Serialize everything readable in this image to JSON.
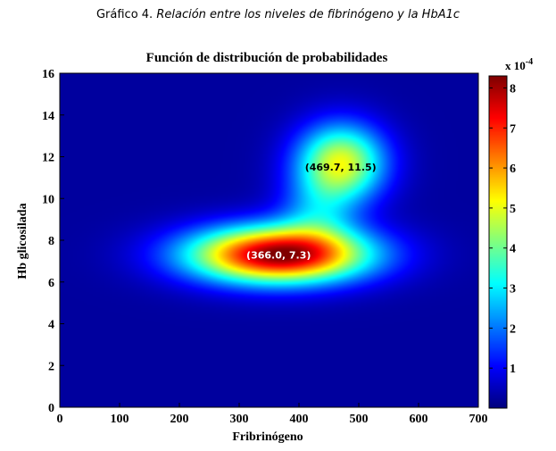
{
  "caption": {
    "label": "Gráfico 4.",
    "text": "Relación entre los niveles de fibrinógeno y la HbA1c"
  },
  "chart_data": {
    "type": "heatmap",
    "title": "Función de distribución de probabilidades",
    "xlabel": "Fribrinógeno",
    "ylabel": "Hb glicosilada",
    "xlim": [
      0,
      700
    ],
    "ylim": [
      0,
      16
    ],
    "x_ticks": [
      "0",
      "100",
      "200",
      "300",
      "400",
      "500",
      "600",
      "700"
    ],
    "y_ticks": [
      "0",
      "2",
      "4",
      "6",
      "8",
      "10",
      "12",
      "14",
      "16"
    ],
    "colorbar": {
      "multiplier": "x 10",
      "exponent": "-4",
      "range": [
        0,
        8.3
      ],
      "ticks": [
        "1",
        "2",
        "3",
        "4",
        "5",
        "6",
        "7",
        "8"
      ],
      "colormap": "jet"
    },
    "peaks": [
      {
        "label": "(366.0, 7.3)",
        "x": 366.0,
        "y": 7.3,
        "value": 8.3,
        "label_color": "#ffffff"
      },
      {
        "label": "(469.7, 11.5)",
        "x": 469.7,
        "y": 11.5,
        "value": 5.0,
        "label_color": "#000000"
      }
    ],
    "components": [
      {
        "mx": 366,
        "my": 7.3,
        "sx": 105,
        "sy": 0.95,
        "amp": 8.3
      },
      {
        "mx": 470,
        "my": 11.7,
        "sx": 52,
        "sy": 1.3,
        "amp": 4.9
      },
      {
        "mx": 430,
        "my": 9.3,
        "sx": 45,
        "sy": 1.2,
        "amp": 1.6
      }
    ]
  }
}
